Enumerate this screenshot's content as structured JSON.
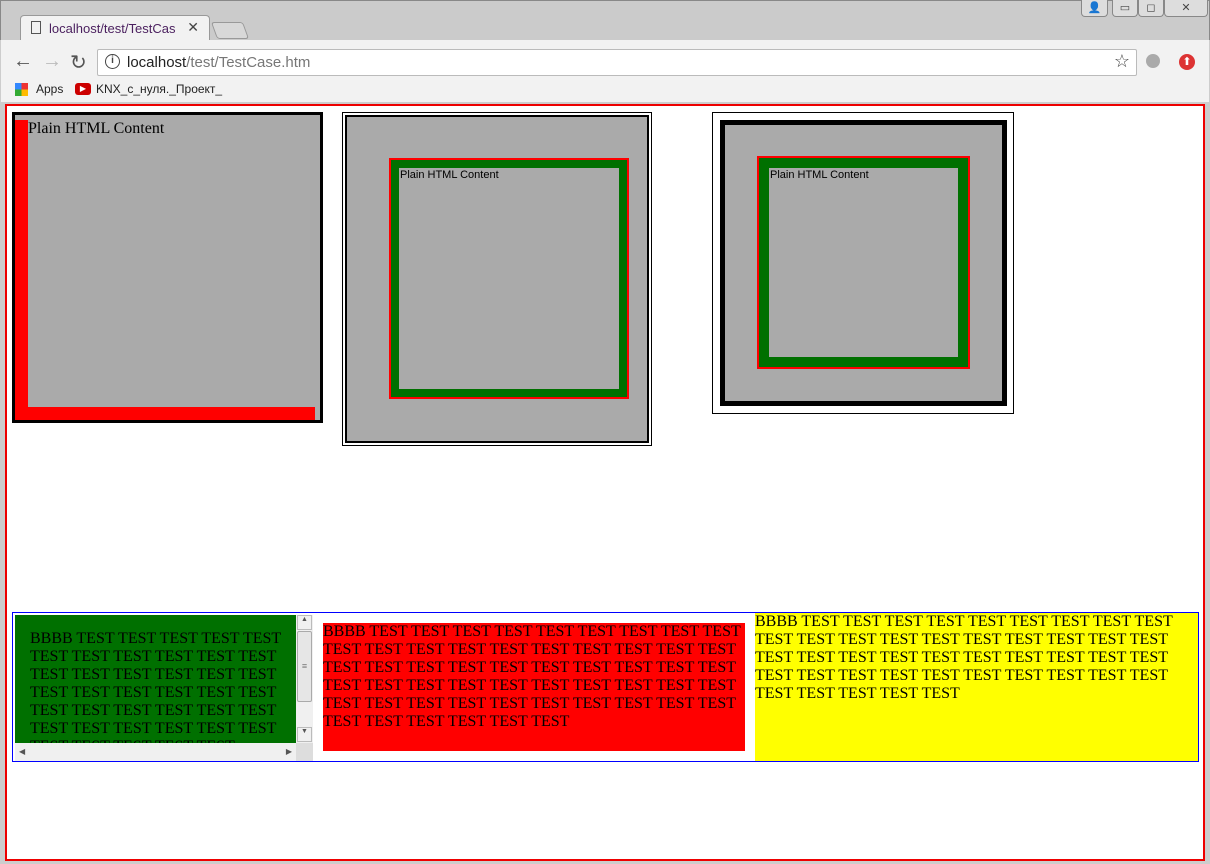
{
  "browser": {
    "tab_title": "localhost/test/TestCase.htm",
    "url_host": "localhost",
    "url_path": "/test/TestCase.htm",
    "bookmarks": [
      {
        "label": "Apps",
        "icon": "apps-grid-icon"
      },
      {
        "label": "KNX_с_нуля._Проект_",
        "icon": "youtube-icon"
      }
    ],
    "window_buttons": [
      "user-icon",
      "minimize-icon",
      "restore-icon",
      "close-icon"
    ]
  },
  "page": {
    "box1_text": "Plain HTML Content",
    "box2_text": "Plain HTML Content",
    "box3_text": "Plain HTML Content",
    "green_text": "BBBB TEST TEST TEST TEST TEST TEST TEST TEST TEST TEST TEST TEST TEST TEST TEST TEST TEST TEST TEST TEST TEST TEST TEST TEST TEST TEST TEST TEST TEST TEST TEST TEST TEST TEST TEST TEST TEST TEST TEST TEST",
    "red_text": "BBBB TEST TEST TEST TEST TEST TEST TEST TEST TEST TEST TEST TEST TEST TEST TEST TEST TEST TEST TEST TEST TEST TEST TEST TEST TEST TEST TEST TEST TEST TEST TEST TEST TEST TEST TEST TEST TEST TEST TEST TEST TEST TEST TEST TEST TEST TEST TEST TEST TEST TEST TEST TEST TEST TEST TEST",
    "yellow_text": "BBBB TEST TEST TEST TEST TEST TEST TEST TEST TEST TEST TEST TEST TEST TEST TEST TEST TEST TEST TEST TEST TEST TEST TEST TEST TEST TEST TEST TEST TEST TEST TEST TEST TEST TEST TEST TEST TEST TEST TEST TEST TEST TEST TEST TEST"
  },
  "colors": {
    "red": "#ff0000",
    "green": "#008000",
    "gray": "#aaaaaa",
    "yellow": "#ffff00",
    "blue": "#0000ff"
  }
}
